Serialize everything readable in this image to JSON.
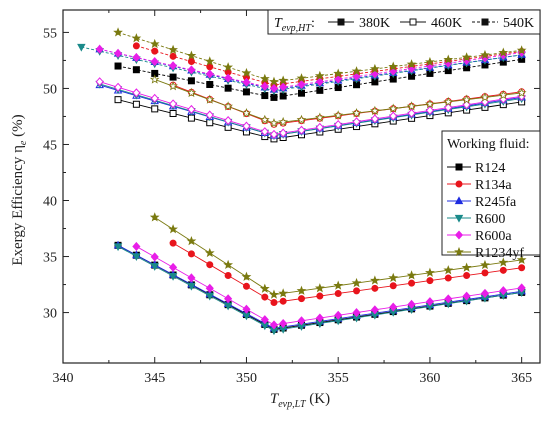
{
  "chart_data": {
    "type": "line",
    "xlabel": {
      "main": "T",
      "sub": "evp,LT",
      "unit": " (K)"
    },
    "ylabel": {
      "main": "Exergy Efficiency η",
      "sub": "e",
      "unit": " (%)"
    },
    "xlim": [
      340,
      366
    ],
    "ylim": [
      25.5,
      57
    ],
    "xticks": [
      340,
      345,
      350,
      355,
      360,
      365
    ],
    "yticks": [
      30,
      35,
      40,
      45,
      50,
      55
    ],
    "grid": false,
    "fluid_legend": {
      "title": "Working fluid:",
      "placement": "right",
      "entries": [
        {
          "name": "R124",
          "color": "#000000",
          "marker": "square"
        },
        {
          "name": "R134a",
          "color": "#e8141c",
          "marker": "circle"
        },
        {
          "name": "R245fa",
          "color": "#1f2de0",
          "marker": "triangle-up"
        },
        {
          "name": "R600",
          "color": "#1a8a8a",
          "marker": "triangle-down"
        },
        {
          "name": "R600a",
          "color": "#e81ee8",
          "marker": "diamond"
        },
        {
          "name": "R1234yf",
          "color": "#7a7a10",
          "marker": "star"
        }
      ]
    },
    "temperature_legend": {
      "title_main": "T",
      "title_sub": "evp,HT",
      "title_suffix": ":",
      "placement": "top-right",
      "entries": [
        {
          "label": "380K",
          "fill": "filled",
          "dash": "solid"
        },
        {
          "label": "460K",
          "fill": "open",
          "dash": "solid"
        },
        {
          "label": "540K",
          "fill": "filled",
          "dash": "dashed"
        }
      ]
    },
    "series": [
      {
        "fluid": "R124",
        "T_HT": "380K",
        "x": [
          343,
          351.5,
          365
        ],
        "y": [
          36.0,
          28.5,
          31.8
        ]
      },
      {
        "fluid": "R124",
        "T_HT": "460K",
        "x": [
          343,
          351.5,
          365
        ],
        "y": [
          49.0,
          45.5,
          48.8
        ]
      },
      {
        "fluid": "R124",
        "T_HT": "540K",
        "x": [
          343,
          351.5,
          365
        ],
        "y": [
          52.0,
          49.2,
          52.6
        ]
      },
      {
        "fluid": "R134a",
        "T_HT": "380K",
        "x": [
          346,
          351.5,
          365
        ],
        "y": [
          36.2,
          30.9,
          34.0
        ]
      },
      {
        "fluid": "R134a",
        "T_HT": "460K",
        "x": [
          346,
          351.5,
          365
        ],
        "y": [
          50.3,
          46.8,
          49.7
        ]
      },
      {
        "fluid": "R134a",
        "T_HT": "540K",
        "x": [
          344,
          351.5,
          365
        ],
        "y": [
          53.8,
          50.3,
          53.3
        ]
      },
      {
        "fluid": "R245fa",
        "T_HT": "380K",
        "x": [
          343,
          351.5,
          365
        ],
        "y": [
          36.0,
          28.6,
          31.9
        ]
      },
      {
        "fluid": "R245fa",
        "T_HT": "460K",
        "x": [
          342,
          351.5,
          365
        ],
        "y": [
          50.3,
          45.8,
          49.2
        ]
      },
      {
        "fluid": "R245fa",
        "T_HT": "540K",
        "x": [
          342,
          351.5,
          365
        ],
        "y": [
          53.5,
          49.9,
          53.0
        ]
      },
      {
        "fluid": "R600",
        "T_HT": "380K",
        "x": [
          343,
          351.5,
          365
        ],
        "y": [
          35.9,
          28.4,
          31.8
        ]
      },
      {
        "fluid": "R600",
        "T_HT": "460K",
        "x": [
          342,
          351.5,
          365
        ],
        "y": [
          50.4,
          45.8,
          49.1
        ]
      },
      {
        "fluid": "R600",
        "T_HT": "540K",
        "x": [
          341,
          351.5,
          365
        ],
        "y": [
          53.7,
          49.8,
          53.0
        ]
      },
      {
        "fluid": "R600a",
        "T_HT": "380K",
        "x": [
          344,
          351.5,
          365
        ],
        "y": [
          35.9,
          28.9,
          32.2
        ]
      },
      {
        "fluid": "R600a",
        "T_HT": "460K",
        "x": [
          342,
          351.5,
          365
        ],
        "y": [
          50.6,
          45.9,
          49.3
        ]
      },
      {
        "fluid": "R600a",
        "T_HT": "540K",
        "x": [
          342,
          351.5,
          365
        ],
        "y": [
          53.5,
          50.0,
          53.2
        ]
      },
      {
        "fluid": "R1234yf",
        "T_HT": "380K",
        "x": [
          345,
          351.5,
          365
        ],
        "y": [
          38.5,
          31.6,
          34.7
        ]
      },
      {
        "fluid": "R1234yf",
        "T_HT": "460K",
        "x": [
          345,
          351.5,
          365
        ],
        "y": [
          50.8,
          46.9,
          49.6
        ]
      },
      {
        "fluid": "R1234yf",
        "T_HT": "540K",
        "x": [
          343,
          351.5,
          365
        ],
        "y": [
          55.0,
          50.6,
          53.4
        ]
      }
    ]
  }
}
